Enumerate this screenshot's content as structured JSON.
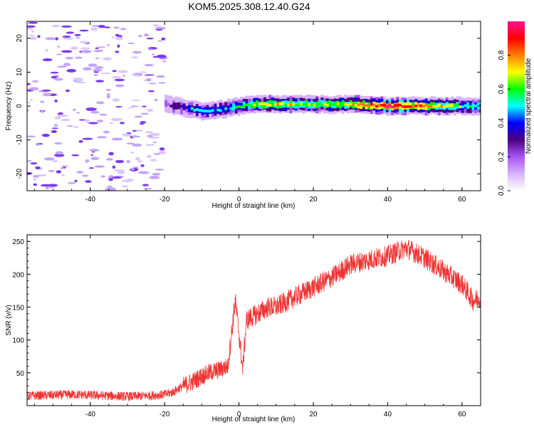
{
  "figure": {
    "title": "KOM5.2025.308.12.40.G24"
  },
  "chart_data": [
    {
      "type": "heatmap",
      "title": "KOM5.2025.308.12.40.G24",
      "xlabel": "Height of straight line (km)",
      "ylabel": "Frequency (Hz)",
      "xlim": [
        -57,
        65
      ],
      "ylim": [
        -25,
        25
      ],
      "xticks": [
        -40,
        -20,
        0,
        20,
        40,
        60
      ],
      "yticks": [
        20,
        10,
        0,
        -10,
        -20
      ],
      "colorbar": {
        "label": "Normalized spectral amplitude",
        "range": [
          0,
          1
        ],
        "ticks": [
          0.0,
          0.2,
          0.4,
          0.6,
          0.8
        ],
        "colors": [
          "#ffffff",
          "#d8b4fe",
          "#a855f7",
          "#4b0082",
          "#0000ff",
          "#00ffff",
          "#00ff00",
          "#ffff00",
          "#ff7f00",
          "#ff0000",
          "#ff1493"
        ]
      },
      "ridge": [
        {
          "x": -20,
          "f": 0.5,
          "a": 0.2
        },
        {
          "x": -15,
          "f": -0.5,
          "a": 0.35
        },
        {
          "x": -10,
          "f": -1.5,
          "a": 0.5
        },
        {
          "x": -5,
          "f": -1.0,
          "a": 0.45
        },
        {
          "x": 0,
          "f": 0.0,
          "a": 0.55
        },
        {
          "x": 5,
          "f": 0.5,
          "a": 0.65
        },
        {
          "x": 10,
          "f": 0.5,
          "a": 0.7
        },
        {
          "x": 20,
          "f": 0.5,
          "a": 0.65
        },
        {
          "x": 30,
          "f": 0.5,
          "a": 0.7
        },
        {
          "x": 40,
          "f": 0.0,
          "a": 0.95
        },
        {
          "x": 50,
          "f": 0.0,
          "a": 0.8
        },
        {
          "x": 60,
          "f": 0.0,
          "a": 0.6
        },
        {
          "x": 65,
          "f": 0.0,
          "a": 0.5
        }
      ],
      "noise_region": {
        "x_range": [
          -57,
          -20
        ],
        "f_range": [
          -25,
          25
        ],
        "amplitude": "low"
      }
    },
    {
      "type": "line",
      "xlabel": "Height of straight line (km)",
      "ylabel": "SNR (v/v)",
      "xlim": [
        -57,
        65
      ],
      "ylim": [
        0,
        260
      ],
      "xticks": [
        -40,
        -20,
        0,
        20,
        40,
        60
      ],
      "yticks": [
        50,
        100,
        150,
        200,
        250
      ],
      "series": [
        {
          "name": "SNR",
          "color": "#ee3333",
          "x": [
            -57,
            -50,
            -45,
            -40,
            -35,
            -30,
            -25,
            -20,
            -18,
            -15,
            -12,
            -10,
            -8,
            -5,
            -3,
            -2,
            -1,
            0,
            1,
            2,
            5,
            8,
            10,
            15,
            20,
            25,
            30,
            35,
            40,
            45,
            50,
            55,
            60,
            63,
            65
          ],
          "y": [
            15,
            16,
            17,
            16,
            15,
            14,
            15,
            17,
            20,
            30,
            38,
            45,
            50,
            55,
            60,
            110,
            160,
            110,
            55,
            130,
            140,
            150,
            150,
            165,
            180,
            195,
            215,
            222,
            228,
            240,
            225,
            205,
            185,
            160,
            165
          ]
        }
      ]
    }
  ]
}
